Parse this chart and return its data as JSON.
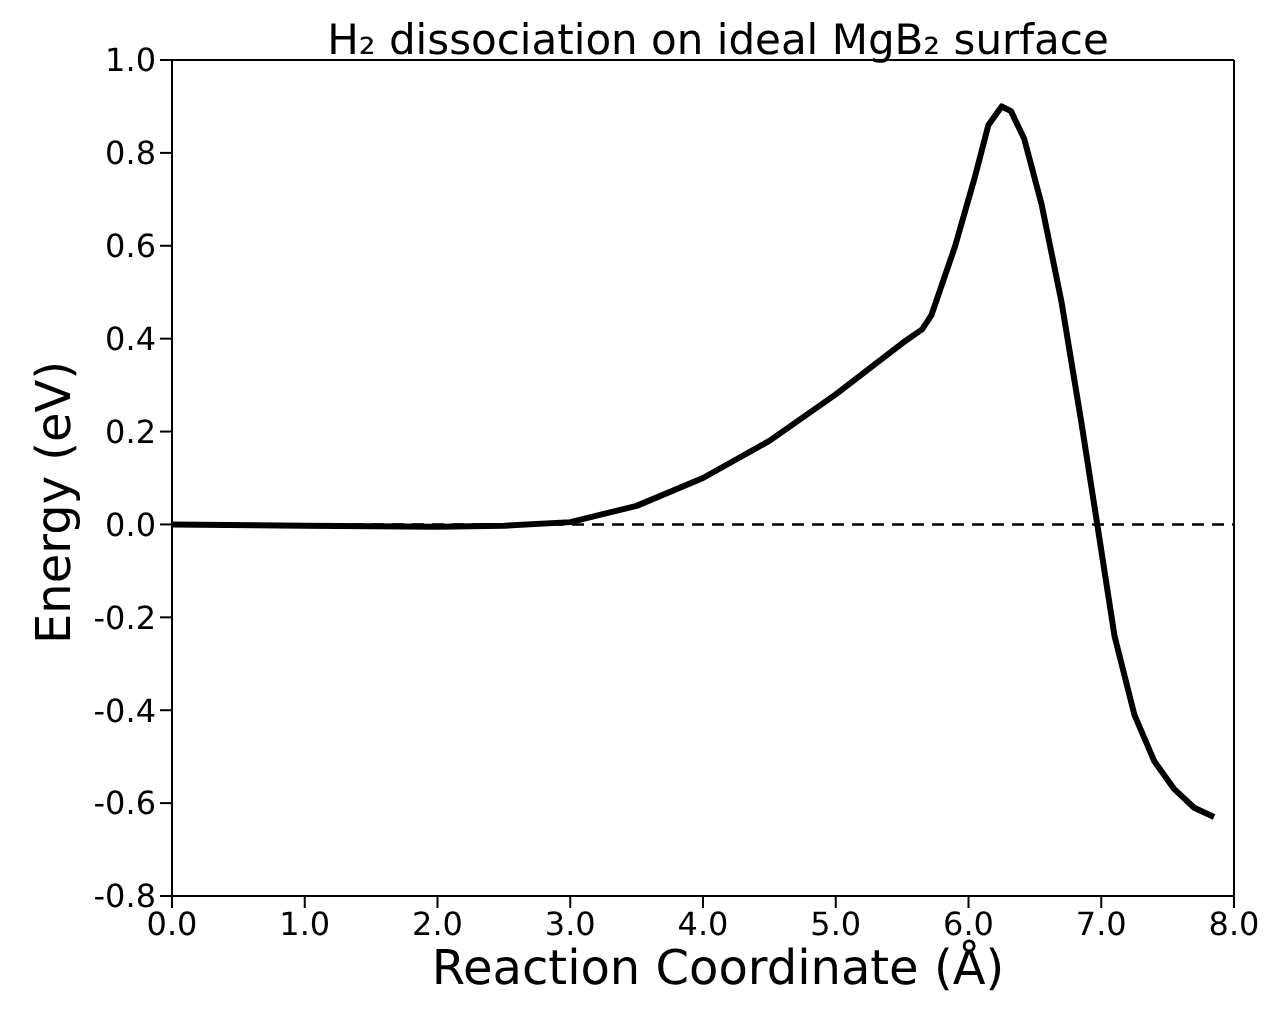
{
  "chart_data": {
    "type": "line",
    "title": "H₂ dissociation on ideal MgB₂ surface",
    "xlabel": "Reaction Coordinate (Å)",
    "ylabel": "Energy (eV)",
    "x": [
      0,
      1,
      2,
      2.5,
      3,
      3.5,
      4,
      4.5,
      5,
      5.5,
      5.65,
      5.72,
      5.9,
      6.05,
      6.15,
      6.25,
      6.32,
      6.42,
      6.55,
      6.7,
      6.85,
      6.97,
      7.1,
      7.25,
      7.4,
      7.55,
      7.7,
      7.85
    ],
    "series": [
      {
        "color": "#000000",
        "values": [
          0,
          -0.003,
          -0.005,
          -0.003,
          0.005,
          0.04,
          0.1,
          0.18,
          0.28,
          0.39,
          0.42,
          0.45,
          0.6,
          0.75,
          0.86,
          0.9,
          0.89,
          0.83,
          0.69,
          0.48,
          0.22,
          0,
          -0.24,
          -0.41,
          -0.51,
          -0.57,
          -0.61,
          -0.63
        ]
      }
    ],
    "xlim": [
      0,
      8
    ],
    "xticks": [
      {
        "value": 0,
        "label": "0.0"
      },
      {
        "value": 1,
        "label": "1.0"
      },
      {
        "value": 2,
        "label": "2.0"
      },
      {
        "value": 3,
        "label": "3.0"
      },
      {
        "value": 4,
        "label": "4.0"
      },
      {
        "value": 5,
        "label": "5.0"
      },
      {
        "value": 6,
        "label": "6.0"
      },
      {
        "value": 7,
        "label": "7.0"
      },
      {
        "value": 8,
        "label": "8.0"
      }
    ],
    "ylim": [
      -0.8,
      1
    ],
    "yticks": [
      {
        "value": -0.8,
        "label": "-0.8"
      },
      {
        "value": -0.6,
        "label": "-0.6"
      },
      {
        "value": -0.4,
        "label": "-0.4"
      },
      {
        "value": -0.2,
        "label": "-0.2"
      },
      {
        "value": 0,
        "label": "0.0"
      },
      {
        "value": 0.2,
        "label": "0.2"
      },
      {
        "value": 0.4,
        "label": "0.4"
      },
      {
        "value": 0.6,
        "label": "0.6"
      },
      {
        "value": 0.8,
        "label": "0.8"
      },
      {
        "value": 1,
        "label": "1.0"
      }
    ],
    "ref_lines": [
      {
        "axis": "y",
        "value": 0,
        "color": "#000000",
        "line_style": "dashed"
      }
    ],
    "legend": false,
    "marker": "none",
    "line_style": "solid"
  }
}
